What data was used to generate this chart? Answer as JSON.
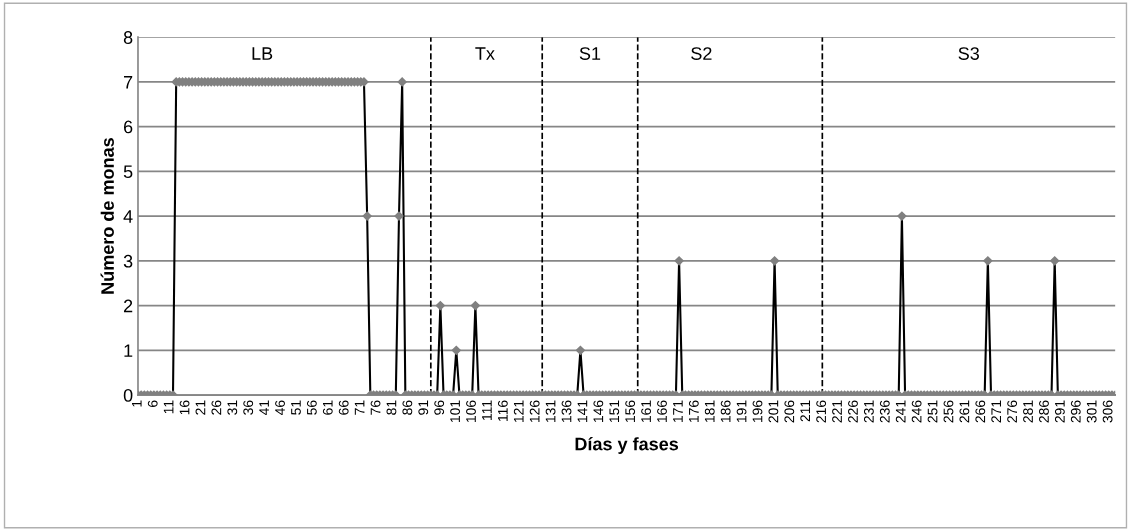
{
  "chart_data": {
    "type": "line",
    "xlabel": "Días y fases",
    "ylabel": "Número de monas",
    "x": [
      1,
      2,
      3,
      4,
      5,
      6,
      7,
      8,
      9,
      10,
      11,
      12,
      13,
      14,
      15,
      16,
      17,
      18,
      19,
      20,
      21,
      22,
      23,
      24,
      25,
      26,
      27,
      28,
      29,
      30,
      31,
      32,
      33,
      34,
      35,
      36,
      37,
      38,
      39,
      40,
      41,
      42,
      43,
      44,
      45,
      46,
      47,
      48,
      49,
      50,
      51,
      52,
      53,
      54,
      55,
      56,
      57,
      58,
      59,
      60,
      61,
      62,
      63,
      64,
      65,
      66,
      67,
      68,
      69,
      70,
      71,
      72,
      73,
      74,
      75,
      76,
      77,
      78,
      79,
      80,
      81,
      82,
      83,
      84,
      85,
      86,
      87,
      88,
      89,
      90,
      91,
      92,
      93,
      94,
      95,
      96,
      97,
      98,
      99,
      100,
      101,
      102,
      103,
      104,
      105,
      106,
      107,
      108,
      109,
      110,
      111,
      112,
      113,
      114,
      115,
      116,
      117,
      118,
      119,
      120,
      121,
      122,
      123,
      124,
      125,
      126,
      127,
      128,
      129,
      130,
      131,
      132,
      133,
      134,
      135,
      136,
      137,
      138,
      139,
      140,
      141,
      142,
      143,
      144,
      145,
      146,
      147,
      148,
      149,
      150,
      151,
      152,
      153,
      154,
      155,
      156,
      157,
      158,
      159,
      160,
      161,
      162,
      163,
      164,
      165,
      166,
      167,
      168,
      169,
      170,
      171,
      172,
      173,
      174,
      175,
      176,
      177,
      178,
      179,
      180,
      181,
      182,
      183,
      184,
      185,
      186,
      187,
      188,
      189,
      190,
      191,
      192,
      193,
      194,
      195,
      196,
      197,
      198,
      199,
      200,
      201,
      202,
      203,
      204,
      205,
      206,
      207,
      208,
      209,
      210,
      211,
      212,
      213,
      214,
      215,
      216,
      217,
      218,
      219,
      220,
      221,
      222,
      223,
      224,
      225,
      226,
      227,
      228,
      229,
      230,
      231,
      232,
      233,
      234,
      235,
      236,
      237,
      238,
      239,
      240,
      241,
      242,
      243,
      244,
      245,
      246,
      247,
      248,
      249,
      250,
      251,
      252,
      253,
      254,
      255,
      256,
      257,
      258,
      259,
      260,
      261,
      262,
      263,
      264,
      265,
      266,
      267,
      268,
      269,
      270,
      271,
      272,
      273,
      274,
      275,
      276,
      277,
      278,
      279,
      280,
      281,
      282,
      283,
      284,
      285,
      286,
      287,
      288,
      289,
      290,
      291,
      292,
      293,
      294,
      295,
      296,
      297,
      298,
      299,
      300,
      301,
      302,
      303,
      304,
      305,
      306,
      307,
      308
    ],
    "series": [
      {
        "color": "#808080",
        "values": [
          0,
          0,
          0,
          0,
          0,
          0,
          0,
          0,
          0,
          0,
          0,
          0,
          7,
          7,
          7,
          7,
          7,
          7,
          7,
          7,
          7,
          7,
          7,
          7,
          7,
          7,
          7,
          7,
          7,
          7,
          7,
          7,
          7,
          7,
          7,
          7,
          7,
          7,
          7,
          7,
          7,
          7,
          7,
          7,
          7,
          7,
          7,
          7,
          7,
          7,
          7,
          7,
          7,
          7,
          7,
          7,
          7,
          7,
          7,
          7,
          7,
          7,
          7,
          7,
          7,
          7,
          7,
          7,
          7,
          7,
          7,
          7,
          4,
          0,
          0,
          0,
          0,
          0,
          0,
          0,
          0,
          0,
          4,
          7,
          0,
          0,
          0,
          0,
          0,
          0,
          0,
          0,
          0,
          0,
          0,
          2,
          0,
          0,
          0,
          0,
          1,
          0,
          0,
          0,
          0,
          0,
          2,
          0,
          0,
          0,
          0,
          0,
          0,
          0,
          0,
          0,
          0,
          0,
          0,
          0,
          0,
          0,
          0,
          0,
          0,
          0,
          0,
          0,
          0,
          0,
          0,
          0,
          0,
          0,
          0,
          0,
          0,
          0,
          0,
          1,
          0,
          0,
          0,
          0,
          0,
          0,
          0,
          0,
          0,
          0,
          0,
          0,
          0,
          0,
          0,
          0,
          0,
          0,
          0,
          0,
          0,
          0,
          0,
          0,
          0,
          0,
          0,
          0,
          0,
          0,
          3,
          0,
          0,
          0,
          0,
          0,
          0,
          0,
          0,
          0,
          0,
          0,
          0,
          0,
          0,
          0,
          0,
          0,
          0,
          0,
          0,
          0,
          0,
          0,
          0,
          0,
          0,
          0,
          0,
          0,
          3,
          0,
          0,
          0,
          0,
          0,
          0,
          0,
          0,
          0,
          0,
          0,
          0,
          0,
          0,
          0,
          0,
          0,
          0,
          0,
          0,
          0,
          0,
          0,
          0,
          0,
          0,
          0,
          0,
          0,
          0,
          0,
          0,
          0,
          0,
          0,
          0,
          0,
          0,
          0,
          4,
          0,
          0,
          0,
          0,
          0,
          0,
          0,
          0,
          0,
          0,
          0,
          0,
          0,
          0,
          0,
          0,
          0,
          0,
          0,
          0,
          0,
          0,
          0,
          0,
          0,
          0,
          3,
          0,
          0,
          0,
          0,
          0,
          0,
          0,
          0,
          0,
          0,
          0,
          0,
          0,
          0,
          0,
          0,
          0,
          0,
          0,
          0,
          3,
          0,
          0,
          0,
          0,
          0,
          0,
          0,
          0,
          0,
          0,
          0,
          0,
          0,
          0,
          0,
          0,
          0,
          0,
          0
        ]
      }
    ],
    "xlim": [
      1,
      308
    ],
    "xticks": [
      1,
      6,
      11,
      16,
      21,
      26,
      31,
      36,
      41,
      46,
      51,
      56,
      61,
      66,
      71,
      76,
      81,
      86,
      91,
      96,
      101,
      106,
      111,
      116,
      121,
      126,
      131,
      136,
      141,
      146,
      151,
      156,
      161,
      166,
      171,
      176,
      181,
      186,
      191,
      196,
      201,
      206,
      211,
      216,
      221,
      226,
      231,
      236,
      241,
      246,
      251,
      256,
      261,
      266,
      271,
      276,
      281,
      286,
      291,
      296,
      301,
      306
    ],
    "ylim": [
      0,
      8
    ],
    "yticks": [
      0,
      1,
      2,
      3,
      4,
      5,
      6,
      7,
      8
    ],
    "grid": "y",
    "marker": "diamond",
    "line_style": "solid",
    "ref_lines": [
      {
        "axis": "x",
        "value": 93,
        "color": "#000000",
        "line_style": "dashed"
      },
      {
        "axis": "x",
        "value": 128,
        "color": "#000000",
        "line_style": "dashed"
      },
      {
        "axis": "x",
        "value": 158,
        "color": "#000000",
        "line_style": "dashed"
      },
      {
        "axis": "x",
        "value": 216,
        "color": "#000000",
        "line_style": "dashed"
      }
    ],
    "annotations": [
      {
        "text": "LB",
        "x": 40,
        "y": 7.6
      },
      {
        "text": "Tx",
        "x": 110,
        "y": 7.6
      },
      {
        "text": "S1",
        "x": 143,
        "y": 7.6
      },
      {
        "text": "S2",
        "x": 178,
        "y": 7.6
      },
      {
        "text": "S3",
        "x": 262,
        "y": 7.6
      }
    ]
  }
}
